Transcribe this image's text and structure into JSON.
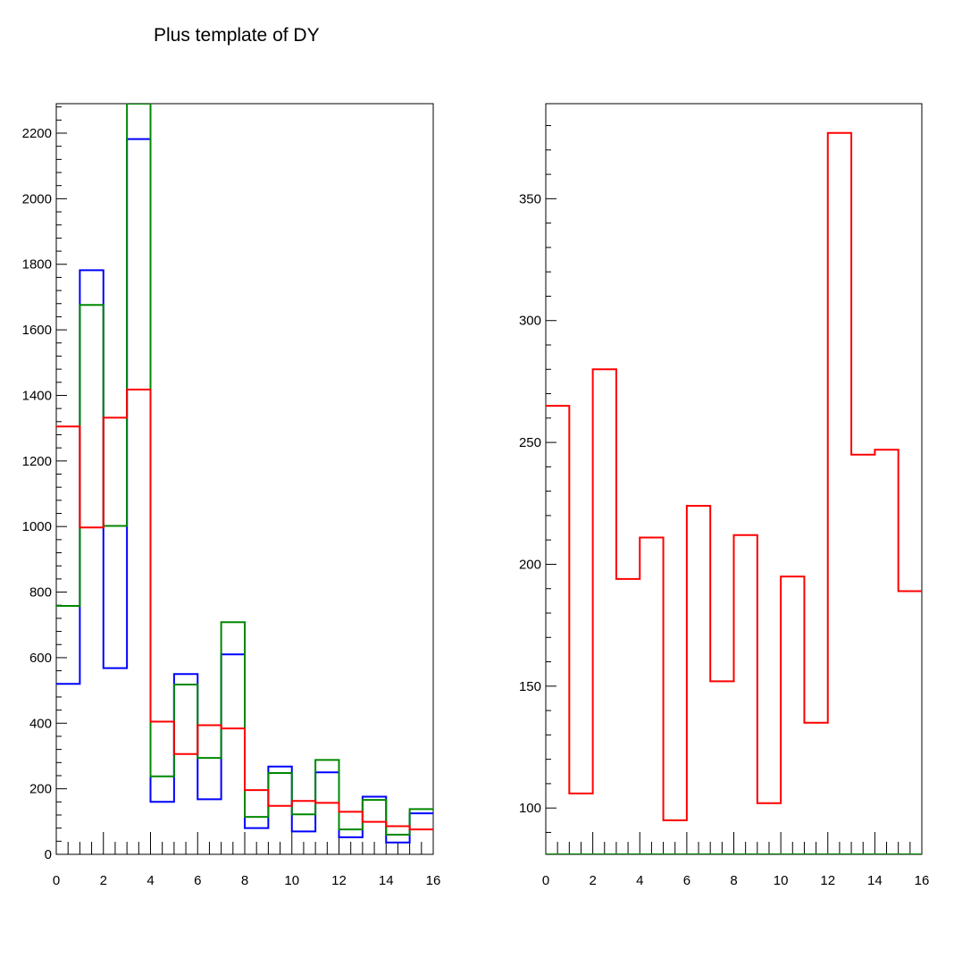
{
  "title": "Plus template of DY",
  "chart_data": [
    {
      "type": "histogram",
      "panel": "left",
      "x_edges": [
        0,
        1,
        2,
        3,
        4,
        5,
        6,
        7,
        8,
        9,
        10,
        11,
        12,
        13,
        14,
        15,
        16
      ],
      "xlim": [
        0,
        16
      ],
      "ylim": [
        0,
        2290
      ],
      "x_ticks": [
        0,
        2,
        4,
        6,
        8,
        10,
        12,
        14,
        16
      ],
      "y_ticks": [
        0,
        200,
        400,
        600,
        800,
        1000,
        1200,
        1400,
        1600,
        1800,
        2000,
        2200
      ],
      "series": [
        {
          "color": "#0000ff",
          "values": [
            520,
            1782,
            568,
            2182,
            160,
            550,
            168,
            610,
            80,
            268,
            70,
            250,
            52,
            176,
            36,
            125
          ]
        },
        {
          "color": "#008800",
          "values": [
            758,
            1676,
            1002,
            2400,
            238,
            518,
            294,
            708,
            114,
            248,
            122,
            288,
            76,
            166,
            60,
            138
          ]
        },
        {
          "color": "#ff0000",
          "values": [
            1305,
            997,
            1332,
            1418,
            405,
            306,
            394,
            384,
            196,
            148,
            163,
            157,
            130,
            99,
            86,
            76
          ]
        }
      ]
    },
    {
      "type": "histogram",
      "panel": "right",
      "x_edges": [
        0,
        1,
        2,
        3,
        4,
        5,
        6,
        7,
        8,
        9,
        10,
        11,
        12,
        13,
        14,
        15,
        16
      ],
      "xlim": [
        0,
        16
      ],
      "ylim": [
        81,
        389
      ],
      "x_ticks": [
        0,
        2,
        4,
        6,
        8,
        10,
        12,
        14,
        16
      ],
      "y_ticks": [
        100,
        150,
        200,
        250,
        300,
        350
      ],
      "series": [
        {
          "color": "#ff0000",
          "values": [
            265,
            106,
            280,
            194,
            211,
            95,
            224,
            152,
            212,
            102,
            195,
            135,
            377,
            245,
            247,
            189
          ]
        },
        {
          "color": "#008800",
          "values": [
            81,
            81,
            81,
            81,
            81,
            81,
            81,
            81,
            81,
            81,
            81,
            81,
            81,
            81,
            81,
            81
          ]
        }
      ]
    }
  ]
}
